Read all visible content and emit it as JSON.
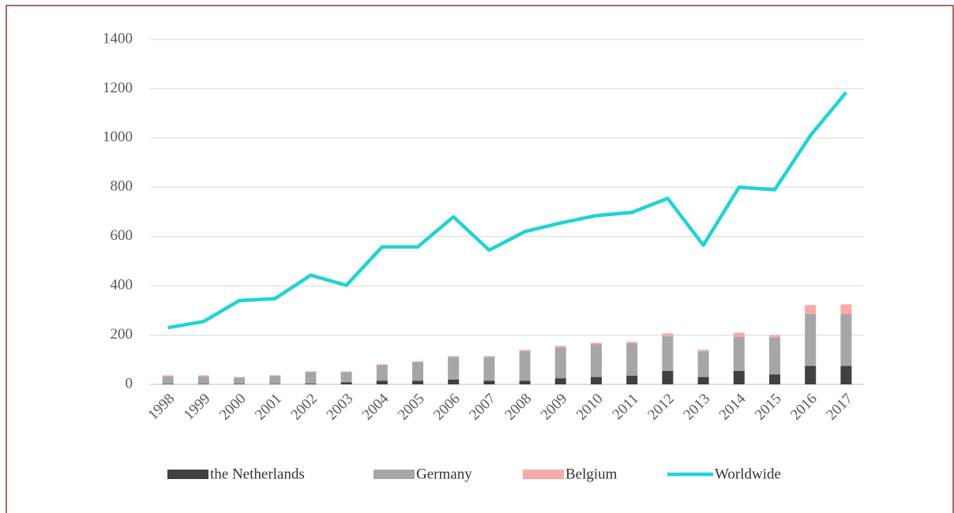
{
  "chart_data": {
    "type": "bar",
    "stacked": true,
    "categories": [
      "1998",
      "1999",
      "2000",
      "2001",
      "2002",
      "2003",
      "2004",
      "2005",
      "2006",
      "2007",
      "2008",
      "2009",
      "2010",
      "2011",
      "2012",
      "2013",
      "2014",
      "2015",
      "2016",
      "2017"
    ],
    "series": [
      {
        "name": "the Netherlands",
        "color": "#404040",
        "values": [
          2,
          2,
          2,
          2,
          3,
          8,
          15,
          15,
          20,
          15,
          15,
          25,
          30,
          35,
          55,
          30,
          55,
          40,
          75,
          75
        ]
      },
      {
        "name": "Germany",
        "color": "#a6a6a6",
        "values": [
          31,
          31,
          26,
          33,
          47,
          40,
          63,
          75,
          90,
          95,
          120,
          125,
          133,
          132,
          140,
          103,
          137,
          150,
          210,
          210
        ]
      },
      {
        "name": "Belgium",
        "color": "#f7aaaa",
        "values": [
          4,
          4,
          2,
          2,
          3,
          5,
          4,
          4,
          5,
          5,
          5,
          6,
          6,
          6,
          12,
          7,
          18,
          10,
          37,
          40
        ]
      },
      {
        "name": "Worldwide",
        "color": "#22d3d3",
        "type": "line",
        "values": [
          230,
          255,
          340,
          348,
          443,
          402,
          558,
          558,
          680,
          545,
          620,
          655,
          685,
          698,
          755,
          565,
          800,
          790,
          1010,
          1185
        ]
      }
    ],
    "ylim": [
      0,
      1400
    ],
    "yticks": [
      0,
      200,
      400,
      600,
      800,
      1000,
      1200,
      1400
    ],
    "grid": true,
    "legend": "bottom"
  }
}
